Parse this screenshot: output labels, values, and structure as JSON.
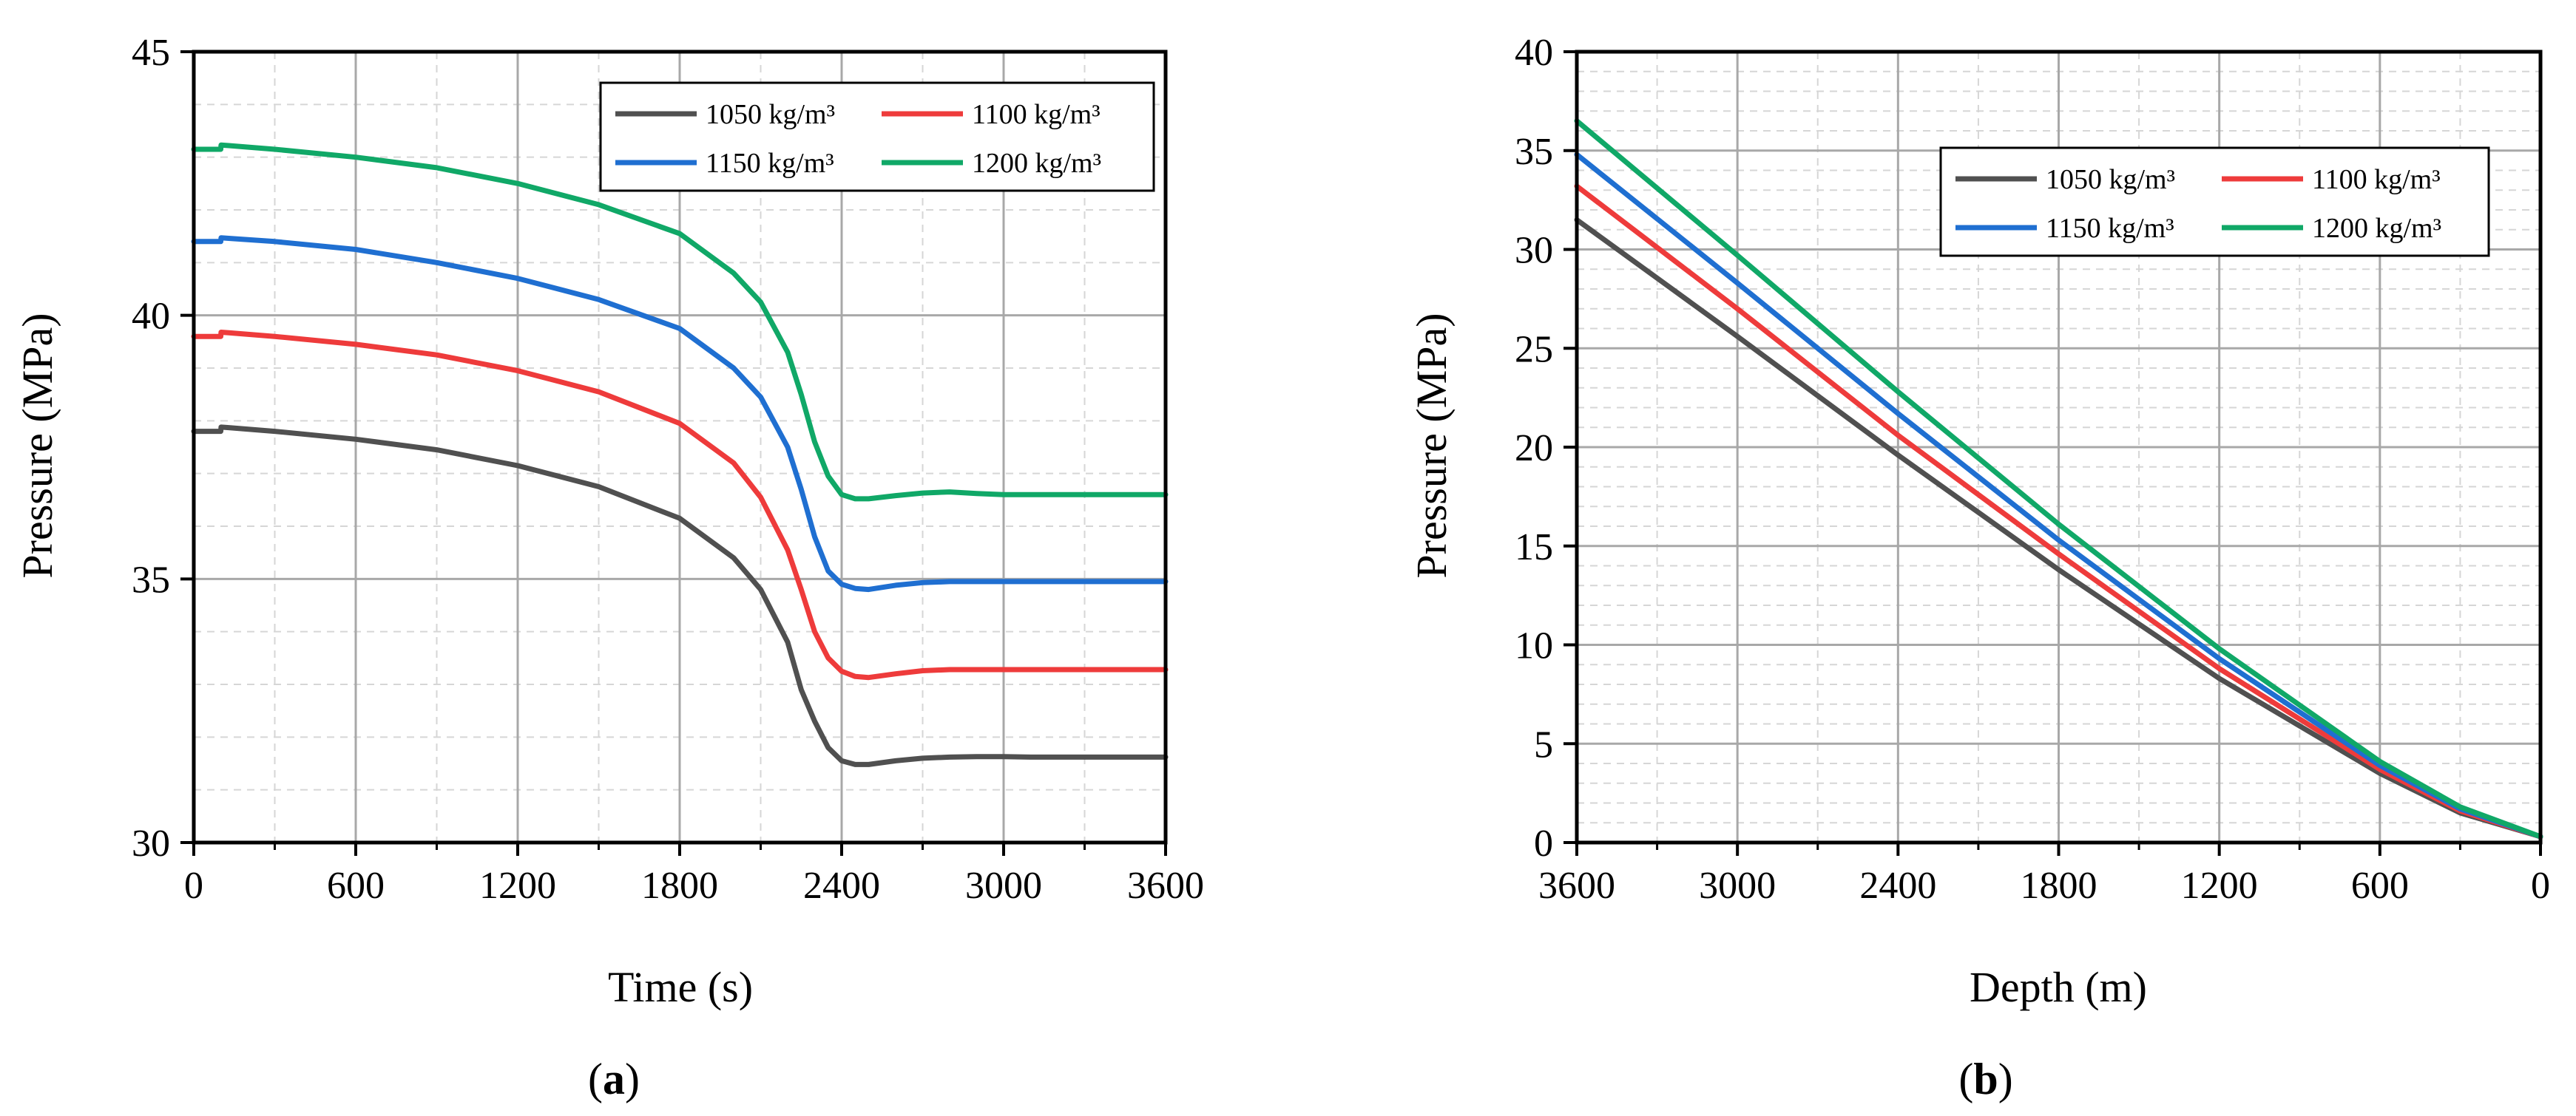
{
  "chart_data": [
    {
      "type": "line",
      "panel_label": "a",
      "xlabel": "Time (s)",
      "ylabel": "Pressure (MPa)",
      "xlim": [
        0,
        3600
      ],
      "ylim": [
        30,
        45
      ],
      "xticks": [
        0,
        600,
        1200,
        1800,
        2400,
        3000,
        3600
      ],
      "yticks": [
        30,
        35,
        40,
        45
      ],
      "grid": true,
      "legend_position": "top-right",
      "series": [
        {
          "name": "1050 kg/m³",
          "color": "#505050",
          "x": [
            0,
            100,
            101,
            130,
            300,
            600,
            900,
            1200,
            1500,
            1800,
            2000,
            2100,
            2200,
            2250,
            2300,
            2350,
            2400,
            2450,
            2500,
            2600,
            2700,
            2800,
            2900,
            3000,
            3100,
            3300,
            3600
          ],
          "y": [
            37.8,
            37.8,
            37.88,
            37.87,
            37.8,
            37.65,
            37.45,
            37.15,
            36.75,
            36.15,
            35.4,
            34.8,
            33.8,
            32.9,
            32.3,
            31.8,
            31.55,
            31.48,
            31.48,
            31.55,
            31.6,
            31.62,
            31.63,
            31.63,
            31.62,
            31.62,
            31.62
          ]
        },
        {
          "name": "1100 kg/m³",
          "color": "#ee3b3b",
          "x": [
            0,
            100,
            101,
            130,
            300,
            600,
            900,
            1200,
            1500,
            1800,
            2000,
            2100,
            2200,
            2250,
            2300,
            2350,
            2400,
            2450,
            2500,
            2600,
            2700,
            2800,
            2900,
            3000,
            3100,
            3300,
            3600
          ],
          "y": [
            39.6,
            39.6,
            39.68,
            39.67,
            39.6,
            39.45,
            39.25,
            38.95,
            38.55,
            37.95,
            37.2,
            36.55,
            35.55,
            34.8,
            34.0,
            33.5,
            33.25,
            33.15,
            33.13,
            33.2,
            33.26,
            33.28,
            33.28,
            33.28,
            33.28,
            33.28,
            33.28
          ]
        },
        {
          "name": "1150 kg/m³",
          "color": "#1f6fd1",
          "x": [
            0,
            100,
            101,
            130,
            300,
            600,
            900,
            1200,
            1500,
            1800,
            2000,
            2100,
            2200,
            2250,
            2300,
            2350,
            2400,
            2450,
            2500,
            2600,
            2700,
            2800,
            2900,
            3000,
            3100,
            3300,
            3600
          ],
          "y": [
            41.4,
            41.4,
            41.47,
            41.46,
            41.4,
            41.25,
            41.0,
            40.7,
            40.3,
            39.75,
            39.0,
            38.45,
            37.5,
            36.7,
            35.8,
            35.15,
            34.9,
            34.82,
            34.8,
            34.88,
            34.93,
            34.95,
            34.95,
            34.95,
            34.95,
            34.95,
            34.95
          ]
        },
        {
          "name": "1200 kg/m³",
          "color": "#10a867",
          "x": [
            0,
            100,
            101,
            130,
            300,
            600,
            900,
            1200,
            1500,
            1800,
            2000,
            2100,
            2200,
            2250,
            2300,
            2350,
            2400,
            2450,
            2500,
            2600,
            2700,
            2800,
            2900,
            3000,
            3100,
            3300,
            3600
          ],
          "y": [
            43.15,
            43.15,
            43.23,
            43.22,
            43.15,
            43.0,
            42.8,
            42.5,
            42.1,
            41.55,
            40.8,
            40.25,
            39.3,
            38.5,
            37.6,
            36.95,
            36.6,
            36.52,
            36.52,
            36.58,
            36.63,
            36.65,
            36.62,
            36.6,
            36.6,
            36.6,
            36.6
          ]
        }
      ]
    },
    {
      "type": "line",
      "panel_label": "b",
      "xlabel": "Depth (m)",
      "ylabel": "Pressure (MPa)",
      "xlim": [
        3600,
        0
      ],
      "ylim": [
        0,
        40
      ],
      "xticks": [
        3600,
        3000,
        2400,
        1800,
        1200,
        600,
        0
      ],
      "yticks": [
        0,
        5,
        10,
        15,
        20,
        25,
        30,
        35,
        40
      ],
      "grid": true,
      "legend_position": "top-right",
      "series": [
        {
          "name": "1050 kg/m³",
          "color": "#505050",
          "x": [
            3600,
            3000,
            2400,
            1800,
            1200,
            600,
            300,
            0
          ],
          "y": [
            31.5,
            25.6,
            19.6,
            13.8,
            8.3,
            3.5,
            1.5,
            0.3
          ]
        },
        {
          "name": "1100 kg/m³",
          "color": "#ee3b3b",
          "x": [
            3600,
            3000,
            2400,
            1800,
            1200,
            600,
            300,
            0
          ],
          "y": [
            33.2,
            27.0,
            20.6,
            14.6,
            8.8,
            3.7,
            1.6,
            0.3
          ]
        },
        {
          "name": "1150 kg/m³",
          "color": "#1f6fd1",
          "x": [
            3600,
            3000,
            2400,
            1800,
            1200,
            600,
            300,
            0
          ],
          "y": [
            34.8,
            28.3,
            21.7,
            15.3,
            9.3,
            3.9,
            1.7,
            0.3
          ]
        },
        {
          "name": "1200 kg/m³",
          "color": "#10a867",
          "x": [
            3600,
            3000,
            2400,
            1800,
            1200,
            600,
            300,
            0
          ],
          "y": [
            36.5,
            29.7,
            22.8,
            16.1,
            9.8,
            4.1,
            1.8,
            0.3
          ]
        }
      ]
    }
  ]
}
